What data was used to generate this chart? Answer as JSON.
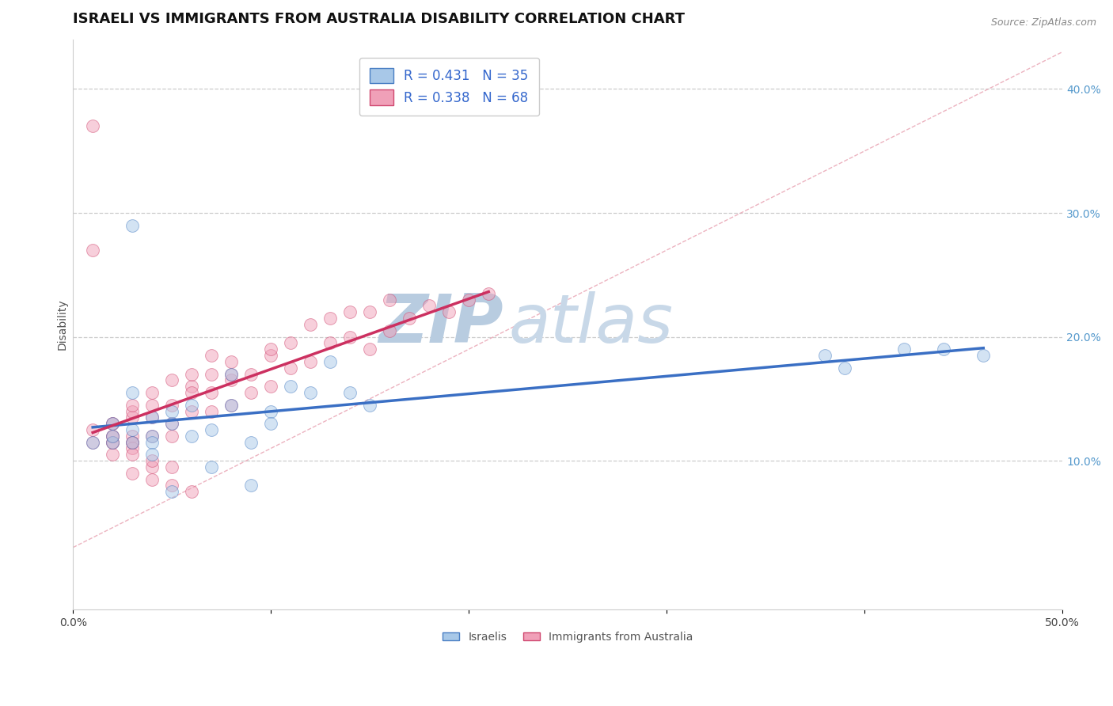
{
  "title": "ISRAELI VS IMMIGRANTS FROM AUSTRALIA DISABILITY CORRELATION CHART",
  "source_text": "Source: ZipAtlas.com",
  "ylabel": "Disability",
  "xlim": [
    0.0,
    0.5
  ],
  "ylim": [
    -0.02,
    0.44
  ],
  "x_ticks": [
    0.0,
    0.1,
    0.2,
    0.3,
    0.4,
    0.5
  ],
  "x_tick_labels": [
    "0.0%",
    "",
    "",
    "",
    "",
    "50.0%"
  ],
  "y_ticks_right": [
    0.1,
    0.2,
    0.3,
    0.4
  ],
  "y_tick_labels_right": [
    "10.0%",
    "20.0%",
    "30.0%",
    "40.0%"
  ],
  "blue_fill": "#a8c8e8",
  "blue_edge": "#4a7fc4",
  "pink_fill": "#f0a0b8",
  "pink_edge": "#d04870",
  "blue_line_color": "#3a6fc4",
  "pink_line_color": "#cc3060",
  "diag_color": "#e8a0b0",
  "legend_blue_label": "R = 0.431   N = 35",
  "legend_pink_label": "R = 0.338   N = 68",
  "legend_title_blue": "Israelis",
  "legend_title_pink": "Immigrants from Australia",
  "watermark_zip": "ZIP",
  "watermark_atlas": "atlas",
  "watermark_color_zip": "#b8cce0",
  "watermark_color_atlas": "#c8d8e8",
  "title_fontsize": 13,
  "axis_label_fontsize": 10,
  "tick_fontsize": 10,
  "legend_fontsize": 12,
  "marker_size": 130,
  "marker_alpha": 0.5,
  "line_width": 2.5,
  "blue_x": [
    0.42,
    0.38,
    0.39,
    0.12,
    0.13,
    0.08,
    0.05,
    0.04,
    0.03,
    0.02,
    0.06,
    0.07,
    0.09,
    0.1,
    0.11,
    0.03,
    0.04,
    0.05,
    0.01,
    0.02,
    0.03,
    0.06,
    0.08,
    0.14,
    0.15,
    0.04,
    0.03,
    0.05,
    0.07,
    0.09,
    0.02,
    0.04,
    0.1,
    0.46,
    0.44
  ],
  "blue_y": [
    0.19,
    0.185,
    0.175,
    0.155,
    0.18,
    0.145,
    0.13,
    0.12,
    0.115,
    0.115,
    0.12,
    0.125,
    0.115,
    0.14,
    0.16,
    0.155,
    0.135,
    0.14,
    0.115,
    0.13,
    0.29,
    0.145,
    0.17,
    0.155,
    0.145,
    0.115,
    0.125,
    0.075,
    0.095,
    0.08,
    0.12,
    0.105,
    0.13,
    0.185,
    0.19
  ],
  "pink_x": [
    0.01,
    0.01,
    0.02,
    0.02,
    0.02,
    0.03,
    0.03,
    0.03,
    0.03,
    0.04,
    0.04,
    0.04,
    0.04,
    0.05,
    0.05,
    0.05,
    0.05,
    0.06,
    0.06,
    0.06,
    0.07,
    0.07,
    0.07,
    0.08,
    0.08,
    0.08,
    0.09,
    0.09,
    0.1,
    0.1,
    0.1,
    0.11,
    0.11,
    0.12,
    0.12,
    0.13,
    0.13,
    0.14,
    0.14,
    0.15,
    0.15,
    0.16,
    0.16,
    0.17,
    0.18,
    0.19,
    0.2,
    0.21,
    0.01,
    0.02,
    0.03,
    0.04,
    0.05,
    0.06,
    0.01,
    0.02,
    0.03,
    0.04,
    0.02,
    0.03,
    0.04,
    0.05,
    0.03,
    0.06,
    0.07,
    0.08,
    0.02,
    0.03
  ],
  "pink_y": [
    0.115,
    0.125,
    0.12,
    0.13,
    0.115,
    0.135,
    0.12,
    0.14,
    0.115,
    0.145,
    0.135,
    0.12,
    0.155,
    0.145,
    0.13,
    0.165,
    0.12,
    0.16,
    0.14,
    0.17,
    0.155,
    0.17,
    0.14,
    0.165,
    0.18,
    0.145,
    0.17,
    0.155,
    0.185,
    0.16,
    0.19,
    0.175,
    0.195,
    0.18,
    0.21,
    0.195,
    0.215,
    0.2,
    0.22,
    0.22,
    0.19,
    0.205,
    0.23,
    0.215,
    0.225,
    0.22,
    0.23,
    0.235,
    0.27,
    0.105,
    0.09,
    0.085,
    0.08,
    0.075,
    0.37,
    0.13,
    0.11,
    0.095,
    0.115,
    0.115,
    0.1,
    0.095,
    0.145,
    0.155,
    0.185,
    0.17,
    0.12,
    0.105
  ]
}
